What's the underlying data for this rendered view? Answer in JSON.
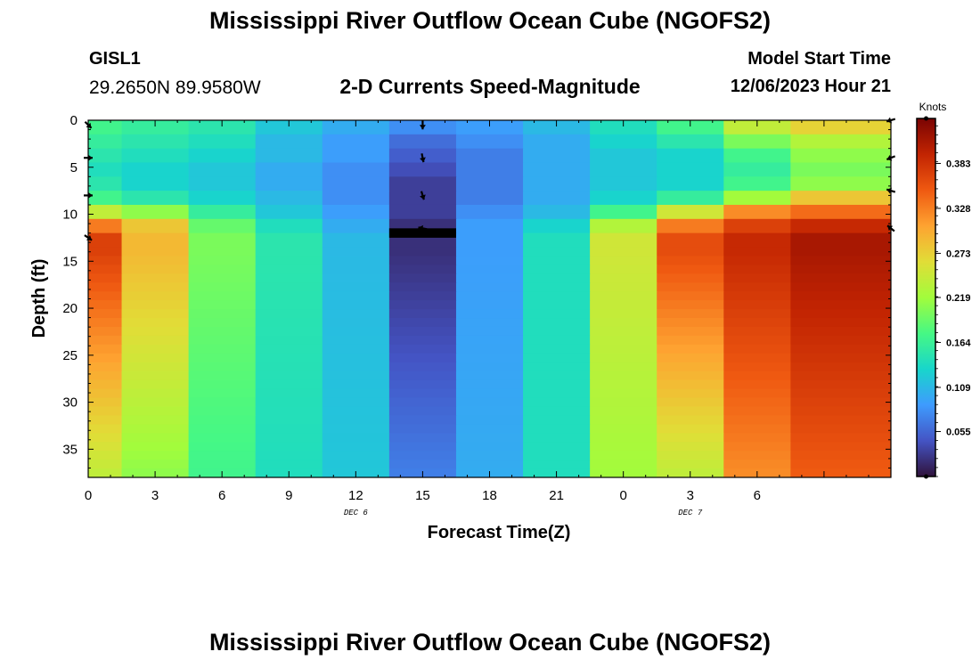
{
  "header": {
    "title": "Mississippi River Outflow Ocean Cube (NGOFS2)",
    "station": "GISL1",
    "coordinates": "29.2650N  89.9580W",
    "subtitle": "2-D Currents Speed-Magnitude",
    "model_start_label": "Model Start Time",
    "model_start_value": "12/06/2023 Hour 21"
  },
  "footer": {
    "title": "Mississippi River Outflow Ocean Cube (NGOFS2)"
  },
  "chart_data": {
    "type": "heatmap",
    "xlabel": "Forecast Time(Z)",
    "ylabel": "Depth (ft)",
    "x_ticks": [
      "0",
      "3",
      "6",
      "9",
      "12",
      "15",
      "18",
      "21",
      "0",
      "3",
      "6"
    ],
    "day_labels": [
      {
        "text": "DEC 6",
        "tick_index": 4
      },
      {
        "text": "DEC 7",
        "tick_index": 9
      }
    ],
    "y_ticks": [
      0,
      5,
      10,
      15,
      20,
      25,
      30,
      35
    ],
    "ylim": [
      0,
      38
    ],
    "xlim_hours": [
      0,
      36
    ],
    "colorbar": {
      "unit": "Knots",
      "range": [
        0.0,
        0.438
      ],
      "tick_values": [
        0.055,
        0.109,
        0.164,
        0.219,
        0.273,
        0.328,
        0.383
      ],
      "tick_labels": [
        "0.055",
        "0.109",
        "0.164",
        "0.219",
        "0.273",
        "0.328",
        "0.383"
      ],
      "colors": [
        "#30123b",
        "#4454c4",
        "#3e9bfe",
        "#18d6cb",
        "#46f884",
        "#a2fc3c",
        "#e1dd37",
        "#fea331",
        "#ef5911",
        "#c22402",
        "#7a0403"
      ]
    },
    "time_hours": [
      0,
      3,
      6,
      9,
      12,
      15,
      18,
      21,
      24,
      27,
      30,
      33
    ],
    "upper_depth_rows": [
      0,
      1.5,
      3,
      4.5,
      6,
      7.5,
      9,
      10.5,
      12
    ],
    "upper_values": [
      [
        0.17,
        0.16,
        0.15,
        0.12,
        0.1,
        0.08,
        0.09,
        0.11,
        0.14,
        0.17,
        0.24,
        0.27
      ],
      [
        0.16,
        0.15,
        0.14,
        0.11,
        0.09,
        0.06,
        0.08,
        0.1,
        0.13,
        0.15,
        0.2,
        0.23
      ],
      [
        0.15,
        0.14,
        0.13,
        0.11,
        0.09,
        0.05,
        0.07,
        0.1,
        0.12,
        0.13,
        0.17,
        0.21
      ],
      [
        0.14,
        0.13,
        0.12,
        0.1,
        0.08,
        0.04,
        0.07,
        0.1,
        0.12,
        0.13,
        0.16,
        0.2
      ],
      [
        0.15,
        0.13,
        0.12,
        0.1,
        0.08,
        0.03,
        0.07,
        0.1,
        0.12,
        0.13,
        0.17,
        0.21
      ],
      [
        0.17,
        0.15,
        0.13,
        0.11,
        0.08,
        0.03,
        0.07,
        0.1,
        0.13,
        0.16,
        0.22,
        0.28
      ],
      [
        0.24,
        0.21,
        0.16,
        0.12,
        0.09,
        0.03,
        0.08,
        0.11,
        0.17,
        0.25,
        0.32,
        0.34
      ],
      [
        0.33,
        0.28,
        0.19,
        0.14,
        0.1,
        0.02,
        0.09,
        0.13,
        0.23,
        0.33,
        0.37,
        0.39
      ],
      [
        0.37,
        0.29,
        0.2,
        0.15,
        0.11,
        0.02,
        0.09,
        0.14,
        0.25,
        0.36,
        0.39,
        0.41
      ]
    ],
    "lower_values_surface": [
      0.37,
      0.29,
      0.2,
      0.15,
      0.11,
      0.02,
      0.09,
      0.14,
      0.25,
      0.36,
      0.39,
      0.41
    ],
    "lower_values_bottom": [
      0.24,
      0.21,
      0.17,
      0.14,
      0.12,
      0.07,
      0.1,
      0.14,
      0.22,
      0.24,
      0.32,
      0.35
    ],
    "no_data_band_depth": [
      11.5,
      12.5
    ],
    "arrows": [
      {
        "hour": 0,
        "depth": 0.5,
        "dx": 1,
        "dy": 1
      },
      {
        "hour": 0,
        "depth": 4,
        "dx": 1,
        "dy": 0
      },
      {
        "hour": 0,
        "depth": 8,
        "dx": 1,
        "dy": 0
      },
      {
        "hour": 0,
        "depth": 12.5,
        "dx": 1,
        "dy": 0.7
      },
      {
        "hour": 15,
        "depth": 0.5,
        "dx": 0,
        "dy": 1
      },
      {
        "hour": 15,
        "depth": 4,
        "dx": 0.2,
        "dy": 1
      },
      {
        "hour": 15,
        "depth": 8,
        "dx": 0.3,
        "dy": 1
      },
      {
        "hour": 15,
        "depth": 11.5,
        "dx": -1,
        "dy": -0.2
      },
      {
        "hour": 36,
        "depth": 0,
        "dx": -1,
        "dy": 0.3
      },
      {
        "hour": 36,
        "depth": 4,
        "dx": -1,
        "dy": 0.4
      },
      {
        "hour": 36,
        "depth": 7.5,
        "dx": -1,
        "dy": -0.3
      },
      {
        "hour": 36,
        "depth": 11.5,
        "dx": -1,
        "dy": -0.8
      }
    ]
  }
}
